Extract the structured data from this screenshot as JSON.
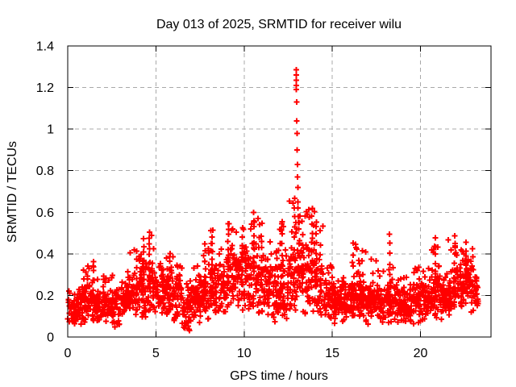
{
  "window": {
    "background": "#ffffff"
  },
  "chart_data": {
    "type": "scatter",
    "title": "Day 013 of 2025, SRMTID for receiver wilu",
    "xlabel": "GPS time / hours",
    "ylabel": "SRMTID / TECUs",
    "xlim": [
      0,
      24
    ],
    "ylim": [
      0,
      1.4
    ],
    "xticks": [
      {
        "v": 0,
        "label": "0"
      },
      {
        "v": 5,
        "label": "5"
      },
      {
        "v": 10,
        "label": "10"
      },
      {
        "v": 15,
        "label": "15"
      },
      {
        "v": 20,
        "label": "20"
      }
    ],
    "yticks": [
      {
        "v": 0,
        "label": "0"
      },
      {
        "v": 0.2,
        "label": "0.2"
      },
      {
        "v": 0.4,
        "label": "0.4"
      },
      {
        "v": 0.6,
        "label": "0.6"
      },
      {
        "v": 0.8,
        "label": "0.8"
      },
      {
        "v": 1,
        "label": "1"
      },
      {
        "v": 1.2,
        "label": "1.2"
      },
      {
        "v": 1.4,
        "label": "1.4"
      }
    ],
    "grid": true,
    "legend": "none",
    "marker": "plus",
    "marker_color": "#ff0000",
    "grid_color": "#a9a9a9",
    "axis_color": "#000000",
    "bins": [
      [
        0.0,
        0.5,
        46,
        0.07,
        0.14,
        0.26
      ],
      [
        0.5,
        1.0,
        46,
        0.08,
        0.15,
        0.3
      ],
      [
        1.0,
        1.5,
        46,
        0.09,
        0.17,
        0.36
      ],
      [
        1.5,
        2.0,
        46,
        0.08,
        0.15,
        0.28
      ],
      [
        2.0,
        2.5,
        46,
        0.08,
        0.15,
        0.3
      ],
      [
        2.5,
        3.0,
        46,
        0.06,
        0.14,
        0.3
      ],
      [
        3.0,
        3.5,
        46,
        0.09,
        0.17,
        0.33
      ],
      [
        3.5,
        4.0,
        46,
        0.1,
        0.2,
        0.42
      ],
      [
        4.0,
        4.5,
        46,
        0.12,
        0.24,
        0.5
      ],
      [
        4.5,
        5.0,
        46,
        0.12,
        0.24,
        0.51
      ],
      [
        5.0,
        5.5,
        46,
        0.11,
        0.21,
        0.38
      ],
      [
        5.5,
        6.0,
        46,
        0.1,
        0.21,
        0.4
      ],
      [
        6.0,
        6.5,
        46,
        0.1,
        0.19,
        0.35
      ],
      [
        6.5,
        7.0,
        46,
        0.05,
        0.13,
        0.28
      ],
      [
        7.0,
        7.5,
        46,
        0.09,
        0.18,
        0.35
      ],
      [
        7.5,
        8.0,
        46,
        0.1,
        0.2,
        0.45
      ],
      [
        8.0,
        8.5,
        46,
        0.12,
        0.24,
        0.52
      ],
      [
        8.5,
        9.0,
        46,
        0.14,
        0.24,
        0.45
      ],
      [
        9.0,
        9.5,
        46,
        0.14,
        0.27,
        0.55
      ],
      [
        9.5,
        10.0,
        46,
        0.15,
        0.28,
        0.52
      ],
      [
        10.0,
        10.5,
        46,
        0.14,
        0.28,
        0.55
      ],
      [
        10.5,
        11.0,
        46,
        0.14,
        0.28,
        0.6
      ],
      [
        11.0,
        11.5,
        46,
        0.12,
        0.24,
        0.46
      ],
      [
        11.5,
        12.0,
        46,
        0.08,
        0.21,
        0.42
      ],
      [
        12.0,
        12.5,
        46,
        0.1,
        0.22,
        0.55
      ],
      [
        12.5,
        13.0,
        46,
        0.12,
        0.28,
        0.67
      ],
      [
        13.0,
        13.5,
        46,
        0.14,
        0.29,
        0.6
      ],
      [
        13.5,
        14.0,
        46,
        0.14,
        0.28,
        0.62
      ],
      [
        14.0,
        14.5,
        46,
        0.12,
        0.24,
        0.55
      ],
      [
        14.5,
        15.0,
        46,
        0.1,
        0.19,
        0.35
      ],
      [
        15.0,
        15.5,
        46,
        0.09,
        0.17,
        0.3
      ],
      [
        15.5,
        16.0,
        46,
        0.08,
        0.16,
        0.3
      ],
      [
        16.0,
        16.5,
        46,
        0.1,
        0.19,
        0.45
      ],
      [
        16.5,
        17.0,
        46,
        0.1,
        0.19,
        0.42
      ],
      [
        17.0,
        17.5,
        46,
        0.09,
        0.18,
        0.4
      ],
      [
        17.5,
        18.0,
        46,
        0.08,
        0.16,
        0.33
      ],
      [
        18.0,
        18.5,
        46,
        0.09,
        0.17,
        0.35
      ],
      [
        18.5,
        19.0,
        46,
        0.08,
        0.15,
        0.3
      ],
      [
        19.0,
        19.5,
        46,
        0.08,
        0.15,
        0.3
      ],
      [
        19.5,
        20.0,
        46,
        0.09,
        0.17,
        0.33
      ],
      [
        20.0,
        20.5,
        46,
        0.1,
        0.19,
        0.35
      ],
      [
        20.5,
        21.0,
        46,
        0.11,
        0.21,
        0.44
      ],
      [
        21.0,
        21.5,
        46,
        0.1,
        0.19,
        0.35
      ],
      [
        21.5,
        22.0,
        46,
        0.11,
        0.21,
        0.47
      ],
      [
        22.0,
        22.5,
        46,
        0.13,
        0.24,
        0.42
      ],
      [
        22.5,
        23.0,
        46,
        0.14,
        0.26,
        0.45
      ],
      [
        23.0,
        23.3,
        28,
        0.13,
        0.21,
        0.3
      ]
    ],
    "spike_columns": [
      [
        0.9,
        0.18,
        0.33,
        4
      ],
      [
        1.45,
        0.18,
        0.36,
        5
      ],
      [
        3.9,
        0.2,
        0.42,
        6
      ],
      [
        4.3,
        0.24,
        0.47,
        8
      ],
      [
        4.62,
        0.24,
        0.51,
        10
      ],
      [
        5.8,
        0.2,
        0.4,
        6
      ],
      [
        7.8,
        0.2,
        0.45,
        7
      ],
      [
        8.2,
        0.24,
        0.52,
        9
      ],
      [
        9.1,
        0.26,
        0.52,
        9
      ],
      [
        9.9,
        0.26,
        0.52,
        8
      ],
      [
        10.55,
        0.28,
        0.6,
        10
      ],
      [
        11.0,
        0.26,
        0.55,
        6
      ],
      [
        12.15,
        0.24,
        0.55,
        7
      ],
      [
        12.85,
        0.28,
        0.67,
        9
      ],
      [
        13.3,
        0.28,
        0.55,
        6
      ],
      [
        13.85,
        0.28,
        0.62,
        9
      ],
      [
        14.1,
        0.26,
        0.55,
        7
      ],
      [
        16.2,
        0.18,
        0.45,
        6
      ],
      [
        16.7,
        0.18,
        0.42,
        5
      ],
      [
        18.25,
        0.2,
        0.5,
        7
      ],
      [
        19.9,
        0.15,
        0.33,
        5
      ],
      [
        20.85,
        0.2,
        0.47,
        8
      ],
      [
        21.95,
        0.2,
        0.48,
        8
      ],
      [
        22.6,
        0.24,
        0.45,
        6
      ]
    ],
    "peak_points": [
      [
        12.93,
        0.5
      ],
      [
        12.94,
        0.55
      ],
      [
        12.95,
        1.285
      ],
      [
        12.95,
        1.26
      ],
      [
        12.96,
        1.235
      ],
      [
        12.96,
        1.21
      ],
      [
        12.97,
        1.19
      ],
      [
        12.98,
        1.13
      ],
      [
        12.99,
        1.04
      ],
      [
        13.0,
        0.98
      ],
      [
        13.01,
        0.9
      ],
      [
        13.02,
        0.83
      ],
      [
        13.03,
        0.77
      ],
      [
        13.04,
        0.72
      ],
      [
        13.05,
        0.65
      ],
      [
        13.06,
        0.62
      ],
      [
        13.07,
        0.58
      ],
      [
        13.08,
        0.55
      ],
      [
        13.1,
        0.52
      ],
      [
        13.12,
        0.55
      ]
    ]
  }
}
